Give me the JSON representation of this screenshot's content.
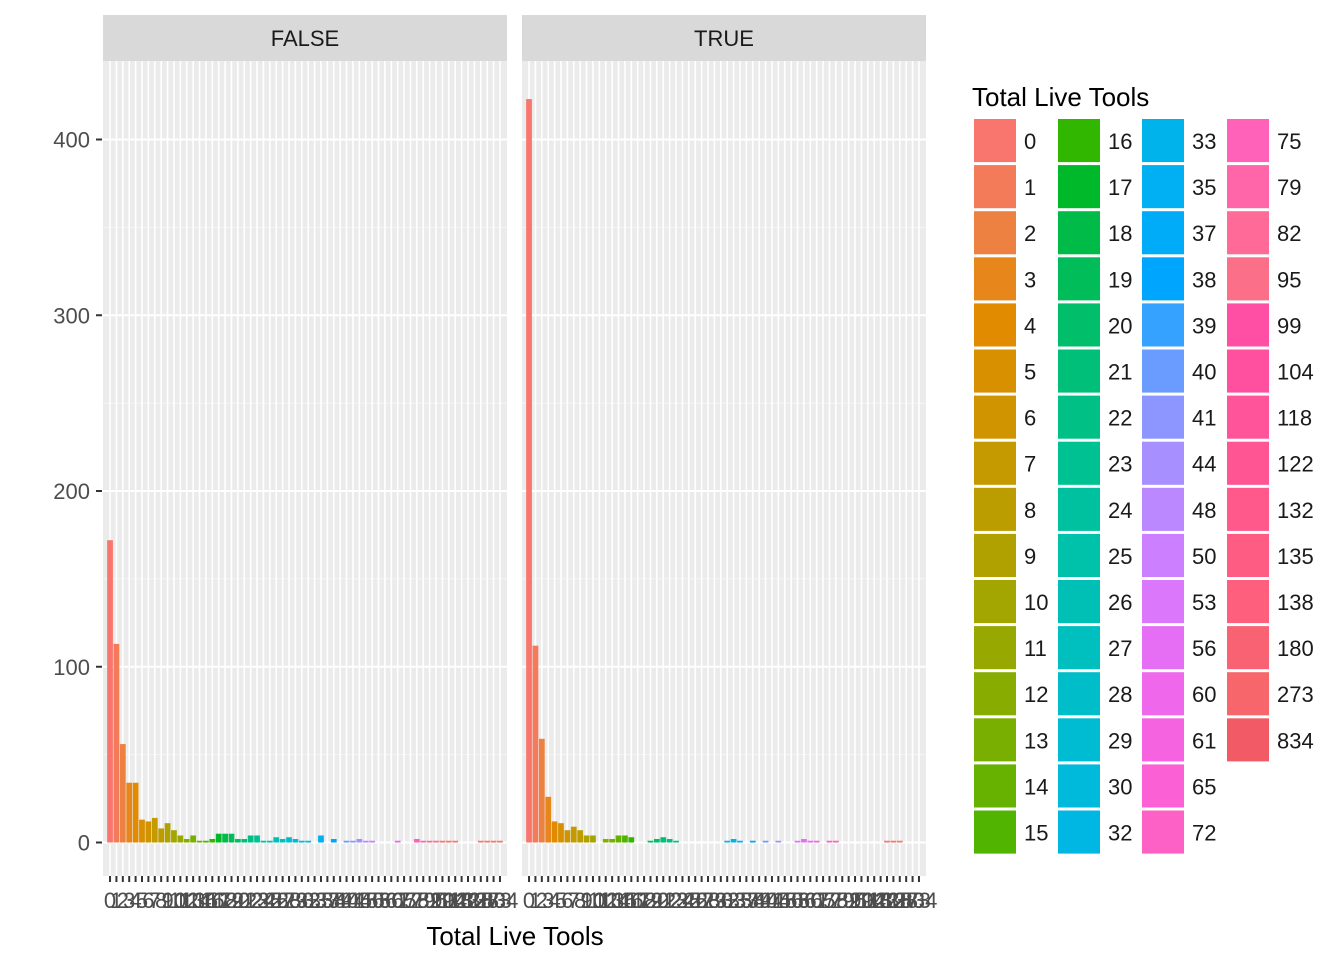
{
  "chart_data": {
    "type": "bar",
    "xlabel": "Total Live Tools",
    "ylabel": "",
    "ylim": [
      0,
      445
    ],
    "y_ticks": [
      0,
      100,
      200,
      300,
      400
    ],
    "grid": true,
    "legend_position": "right",
    "legend": {
      "title": "Total Live Tools"
    },
    "categories": [
      "0",
      "1",
      "2",
      "3",
      "4",
      "5",
      "6",
      "7",
      "8",
      "9",
      "10",
      "11",
      "12",
      "13",
      "14",
      "15",
      "16",
      "17",
      "18",
      "19",
      "20",
      "21",
      "22",
      "23",
      "24",
      "25",
      "26",
      "27",
      "28",
      "29",
      "30",
      "32",
      "33",
      "35",
      "37",
      "38",
      "39",
      "40",
      "41",
      "44",
      "48",
      "50",
      "53",
      "56",
      "60",
      "61",
      "65",
      "72",
      "75",
      "79",
      "82",
      "95",
      "99",
      "104",
      "118",
      "122",
      "132",
      "135",
      "138",
      "180",
      "273",
      "834"
    ],
    "colors": [
      "#F8766D",
      "#F37B59",
      "#ED8141",
      "#E7861B",
      "#E08B00",
      "#D89000",
      "#CF9400",
      "#C59900",
      "#BB9D00",
      "#B0A100",
      "#A3A500",
      "#97A900",
      "#88AC00",
      "#79AF00",
      "#67B200",
      "#51B400",
      "#31B700",
      "#00B92A",
      "#00BB47",
      "#00BC59",
      "#00BE6A",
      "#00BF79",
      "#00C086",
      "#00C192",
      "#00C19F",
      "#00C1AA",
      "#00C0B5",
      "#00BFBF",
      "#00BEC9",
      "#00BCD2",
      "#00BADB",
      "#00B7E3",
      "#00B4EB",
      "#00B0F2",
      "#00ABF8",
      "#00A6FD",
      "#35A2FF",
      "#6A9CFF",
      "#8D96FF",
      "#A78FFF",
      "#BB88FF",
      "#CC80FF",
      "#DA77FB",
      "#E66EF5",
      "#EF67EB",
      "#F663E0",
      "#FB61D4",
      "#FE61C6",
      "#FF62B8",
      "#FF65A9",
      "#FF6A99",
      "#FC6F88",
      "#F8766D",
      "#F8766D",
      "#F8766D",
      "#F8766D",
      "#F8766D",
      "#F8766D",
      "#F8766D",
      "#F8766D",
      "#F8766D",
      "#F8766D"
    ],
    "facets": [
      {
        "label": "FALSE",
        "values": [
          172,
          113,
          56,
          34,
          34,
          13,
          12,
          14,
          8,
          11,
          7,
          4,
          2,
          4,
          1,
          1,
          2,
          5,
          5,
          5,
          2,
          2,
          4,
          4,
          1,
          1,
          3,
          2,
          3,
          2,
          1,
          1,
          0,
          4,
          0,
          2,
          0,
          1,
          1,
          2,
          1,
          1,
          0,
          0,
          0,
          1,
          0,
          0,
          2,
          1,
          1,
          1,
          1,
          1,
          1,
          0,
          0,
          0,
          1,
          1,
          1,
          1
        ]
      },
      {
        "label": "TRUE",
        "values": [
          423,
          112,
          59,
          26,
          12,
          11,
          7,
          9,
          7,
          4,
          4,
          0,
          2,
          2,
          4,
          4,
          3,
          0,
          0,
          1,
          2,
          3,
          2,
          1,
          0,
          0,
          0,
          0,
          0,
          0,
          0,
          1,
          2,
          1,
          0,
          1,
          0,
          1,
          0,
          1,
          0,
          0,
          1,
          2,
          1,
          1,
          0,
          1,
          1,
          0,
          0,
          0,
          0,
          0,
          0,
          0,
          1,
          1,
          1,
          0,
          0,
          0
        ]
      }
    ]
  }
}
